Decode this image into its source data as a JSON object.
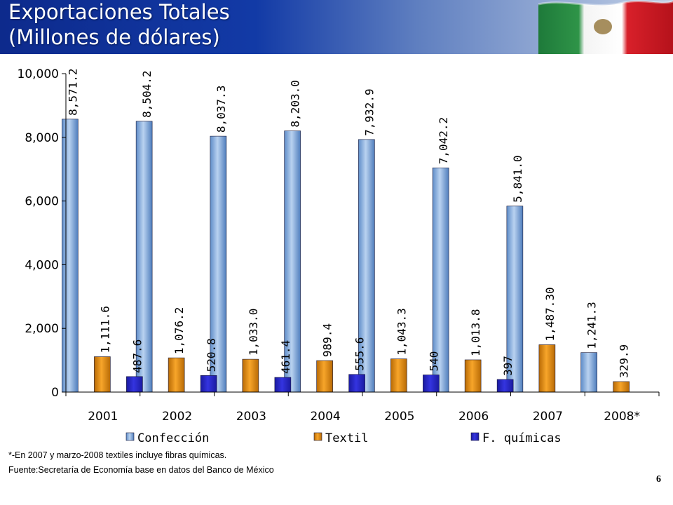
{
  "header": {
    "title_line1": "Exportaciones Totales",
    "title_line2": " (Millones de dólares)"
  },
  "footnote": "*-En 2007 y marzo-2008 textiles incluye fibras químicas.",
  "source": "Fuente:Secretaría de Economía base en datos del Banco de México",
  "page_number": "6",
  "colors": {
    "header_blue": "#123aa6",
    "confeccion": "#8db4e2",
    "textil": "#e8900c",
    "fquimicas": "#2424c8"
  },
  "chart_data": {
    "type": "bar",
    "categories": [
      "2001",
      "2002",
      "2003",
      "2004",
      "2005",
      "2006",
      "2007",
      "2008*"
    ],
    "ylim": [
      0,
      10000
    ],
    "yticks": [
      0,
      2000,
      4000,
      6000,
      8000,
      10000
    ],
    "ytick_labels": [
      "0",
      "2,000",
      "4,000",
      "6,000",
      "8,000",
      "10,000"
    ],
    "grid": false,
    "legend_position": "bottom",
    "series": [
      {
        "name": "Confección",
        "color": "#8db4e2",
        "values": [
          8571.2,
          8504.2,
          8037.3,
          8203.0,
          7932.9,
          7042.2,
          5841.0,
          1241.3
        ],
        "labels": [
          "8,571.2",
          "8,504.2",
          "8,037.3",
          "8,203.0",
          "7,932.9",
          "7,042.2",
          "5,841.0",
          "1,241.3"
        ]
      },
      {
        "name": "Textil",
        "color": "#e8900c",
        "values": [
          1111.6,
          1076.2,
          1033.0,
          989.4,
          1043.3,
          1013.8,
          1487.3,
          329.9
        ],
        "labels": [
          "1,111.6",
          "1,076.2",
          "1,033.0",
          "989.4",
          "1,043.3",
          "1,013.8",
          "1,487.30",
          "329.9"
        ]
      },
      {
        "name": "F. químicas",
        "color": "#2424c8",
        "values": [
          487.6,
          520.8,
          461.4,
          555.6,
          540,
          397,
          null,
          null
        ],
        "labels": [
          "487.6",
          "520.8",
          "461.4",
          "555.6",
          "540",
          "397",
          "",
          ""
        ]
      }
    ]
  }
}
